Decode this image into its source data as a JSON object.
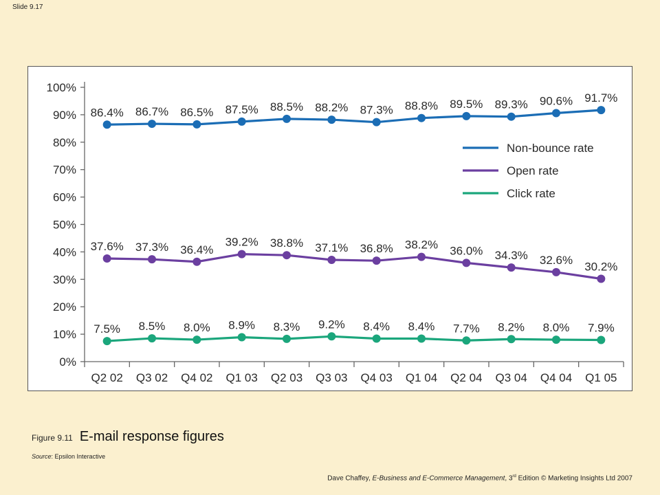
{
  "slide_number": "Slide 9.17",
  "figure": {
    "label": "Figure 9.11",
    "title": "E-mail response figures"
  },
  "source": {
    "prefix": "Source",
    "text": ": Epsilon Interactive"
  },
  "footer": {
    "author": "Dave Chaffey, ",
    "book": "E-Business and E-Commerce Management",
    "edition_pre": ", 3",
    "edition_sup": "rd",
    "edition_post": " Edition © Marketing Insights Ltd 2007"
  },
  "chart_data": {
    "type": "line",
    "categories": [
      "Q2 02",
      "Q3 02",
      "Q4 02",
      "Q1 03",
      "Q2 03",
      "Q3 03",
      "Q4 03",
      "Q1 04",
      "Q2 04",
      "Q3 04",
      "Q4 04",
      "Q1 05"
    ],
    "y_ticks": [
      "0%",
      "10%",
      "20%",
      "30%",
      "40%",
      "50%",
      "60%",
      "70%",
      "80%",
      "90%",
      "100%"
    ],
    "ylim": [
      0,
      100
    ],
    "grid": false,
    "legend_position": "right",
    "series": [
      {
        "name": "Non-bounce rate",
        "color": "#1b6db5",
        "values": [
          86.4,
          86.7,
          86.5,
          87.5,
          88.5,
          88.2,
          87.3,
          88.8,
          89.5,
          89.3,
          90.6,
          91.7
        ],
        "labels": [
          "86.4%",
          "86.7%",
          "86.5%",
          "87.5%",
          "88.5%",
          "88.2%",
          "87.3%",
          "88.8%",
          "89.5%",
          "89.3%",
          "90.6%",
          "91.7%"
        ]
      },
      {
        "name": "Open rate",
        "color": "#6b3fa0",
        "values": [
          37.6,
          37.3,
          36.4,
          39.2,
          38.8,
          37.1,
          36.8,
          38.2,
          36.0,
          34.3,
          32.6,
          30.2
        ],
        "labels": [
          "37.6%",
          "37.3%",
          "36.4%",
          "39.2%",
          "38.8%",
          "37.1%",
          "36.8%",
          "38.2%",
          "36.0%",
          "34.3%",
          "32.6%",
          "30.2%"
        ]
      },
      {
        "name": "Click rate",
        "color": "#1ba67c",
        "values": [
          7.5,
          8.5,
          8.0,
          8.9,
          8.3,
          9.2,
          8.4,
          8.4,
          7.7,
          8.2,
          8.0,
          7.9
        ],
        "labels": [
          "7.5%",
          "8.5%",
          "8.0%",
          "8.9%",
          "8.3%",
          "9.2%",
          "8.4%",
          "8.4%",
          "7.7%",
          "8.2%",
          "8.0%",
          "7.9%"
        ]
      }
    ]
  }
}
